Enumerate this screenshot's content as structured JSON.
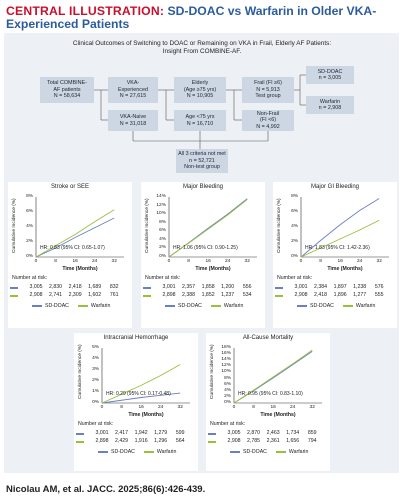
{
  "header": {
    "label": "CENTRAL ILLUSTRATION:",
    "title": "SD-DOAC vs Warfarin in Older VKA-Experienced Patients"
  },
  "flow": {
    "heading": "Clinical Outcomes of Switching to DOAC or Remaining on VKA in Frail, Elderly AF Patients: Insight From COMBINE-AF.",
    "total": [
      "Total COMBINE-",
      "AF patients",
      "N = 58,634"
    ],
    "vka_exp": [
      "VKA-",
      "Experienced",
      "N = 27,615"
    ],
    "vka_naive": [
      "VKA-Naive",
      "N = 31,018"
    ],
    "elderly": [
      "Elderly",
      "(Age ≥75 yrs)",
      "N = 10,905"
    ],
    "age_lt": [
      "Age <75 yrs",
      "N = 16,710"
    ],
    "frail": [
      "Frail (FI ≥6)",
      "N = 5,913",
      "Test group"
    ],
    "nonfrail": [
      "Non-Frail",
      "(FI <6)",
      "N = 4,992"
    ],
    "sd_doac": [
      "SD-DOAC",
      "n = 3,005"
    ],
    "warfarin": [
      "Warfarin",
      "n = 2,908"
    ],
    "notmet": [
      "All 3 criteria not met",
      "n = 52,721",
      "Non-test group"
    ]
  },
  "colors": {
    "sd_doac": "#6c7fc4",
    "warfarin": "#9bbf3b",
    "title_red": "#c8102e",
    "title_blue": "#2b5c9e"
  },
  "common": {
    "xlabel": "Time (Months)",
    "ylabel": "Cumulative Incidence (%)",
    "xticks": [
      "0",
      "8",
      "16",
      "24",
      "32"
    ],
    "nar_label": "Number at risk:",
    "legend_sd": "SD-DOAC",
    "legend_w": "Warfarin"
  },
  "chart_data": [
    {
      "type": "line",
      "title": "Stroke or SEE",
      "yticks": [
        "0%",
        "2%",
        "4%",
        "6%",
        "8%"
      ],
      "ylim": [
        0,
        8
      ],
      "hr": "HR: 0.83 (95% CI: 0.65-1.07)",
      "series": [
        {
          "name": "SD-DOAC",
          "x": [
            0,
            8,
            16,
            24,
            32
          ],
          "values": [
            0,
            1.2,
            2.6,
            3.9,
            5.2
          ]
        },
        {
          "name": "Warfarin",
          "x": [
            0,
            8,
            16,
            24,
            32
          ],
          "values": [
            0,
            1.5,
            3.0,
            4.7,
            6.3
          ]
        }
      ],
      "nar": {
        "sd": [
          "3,005",
          "2,830",
          "2,418",
          "1,689",
          "832"
        ],
        "w": [
          "2,908",
          "2,741",
          "2,309",
          "1,602",
          "761"
        ]
      }
    },
    {
      "type": "line",
      "title": "Major Bleeding",
      "yticks": [
        "0%",
        "2%",
        "4%",
        "6%",
        "8%",
        "10%",
        "12%",
        "14%"
      ],
      "ylim": [
        0,
        14
      ],
      "hr": "HR: 1.06 (95% CI: 0.90-1.25)",
      "series": [
        {
          "name": "SD-DOAC",
          "x": [
            0,
            8,
            16,
            24,
            32
          ],
          "values": [
            0,
            3.3,
            6.7,
            10.0,
            13.6
          ]
        },
        {
          "name": "Warfarin",
          "x": [
            0,
            8,
            16,
            24,
            32
          ],
          "values": [
            0,
            3.2,
            6.5,
            9.8,
            13.4
          ]
        }
      ],
      "nar": {
        "sd": [
          "3,001",
          "2,357",
          "1,858",
          "1,200",
          "556"
        ],
        "w": [
          "2,898",
          "2,388",
          "1,852",
          "1,237",
          "534"
        ]
      }
    },
    {
      "type": "line",
      "title": "Major GI Bleeding",
      "yticks": [
        "0%",
        "2%",
        "4%",
        "6%",
        "8%"
      ],
      "ylim": [
        0,
        8
      ],
      "hr": "HR: 1.83 (95% CI: 1.42-2.36)",
      "series": [
        {
          "name": "SD-DOAC",
          "x": [
            0,
            8,
            16,
            24,
            32
          ],
          "values": [
            0,
            2.2,
            4.3,
            6.2,
            7.8
          ]
        },
        {
          "name": "Warfarin",
          "x": [
            0,
            8,
            16,
            24,
            32
          ],
          "values": [
            0,
            1.2,
            2.4,
            3.6,
            4.9
          ]
        }
      ],
      "nar": {
        "sd": [
          "3,001",
          "2,384",
          "1,897",
          "1,238",
          "576"
        ],
        "w": [
          "2,908",
          "2,418",
          "1,896",
          "1,277",
          "555"
        ]
      }
    },
    {
      "type": "line",
      "title": "Intracranial Hemorrhage",
      "yticks": [
        "0%",
        "1%",
        "2%",
        "3%",
        "4%",
        "5%"
      ],
      "ylim": [
        0,
        5
      ],
      "hr": "HR: 0.29 (95% CI: 0.17-0.48)",
      "series": [
        {
          "name": "SD-DOAC",
          "x": [
            0,
            8,
            16,
            24,
            32
          ],
          "values": [
            0,
            0.25,
            0.5,
            0.7,
            0.9
          ]
        },
        {
          "name": "Warfarin",
          "x": [
            0,
            8,
            16,
            24,
            32
          ],
          "values": [
            0,
            0.8,
            1.6,
            2.5,
            3.5
          ]
        }
      ],
      "nar": {
        "sd": [
          "3,001",
          "2,417",
          "1,942",
          "1,279",
          "599"
        ],
        "w": [
          "2,898",
          "2,429",
          "1,916",
          "1,296",
          "564"
        ]
      }
    },
    {
      "type": "line",
      "title": "All-Cause Mortality",
      "yticks": [
        "0%",
        "2%",
        "4%",
        "6%",
        "8%",
        "10%",
        "12%",
        "14%",
        "16%",
        "18%"
      ],
      "ylim": [
        0,
        18
      ],
      "hr": "HR: 0.95 (95% CI: 0.83-1.10)",
      "series": [
        {
          "name": "SD-DOAC",
          "x": [
            0,
            8,
            16,
            24,
            32
          ],
          "values": [
            0,
            4.0,
            8.2,
            12.5,
            16.9
          ]
        },
        {
          "name": "Warfarin",
          "x": [
            0,
            8,
            16,
            24,
            32
          ],
          "values": [
            0,
            4.2,
            8.5,
            12.8,
            17.3
          ]
        }
      ],
      "nar": {
        "sd": [
          "3,005",
          "2,870",
          "2,463",
          "1,734",
          "859"
        ],
        "w": [
          "2,908",
          "2,785",
          "2,361",
          "1,656",
          "794"
        ]
      }
    }
  ],
  "footer": "Nicolau AM, et al. JACC. 2025;86(6):426-439."
}
